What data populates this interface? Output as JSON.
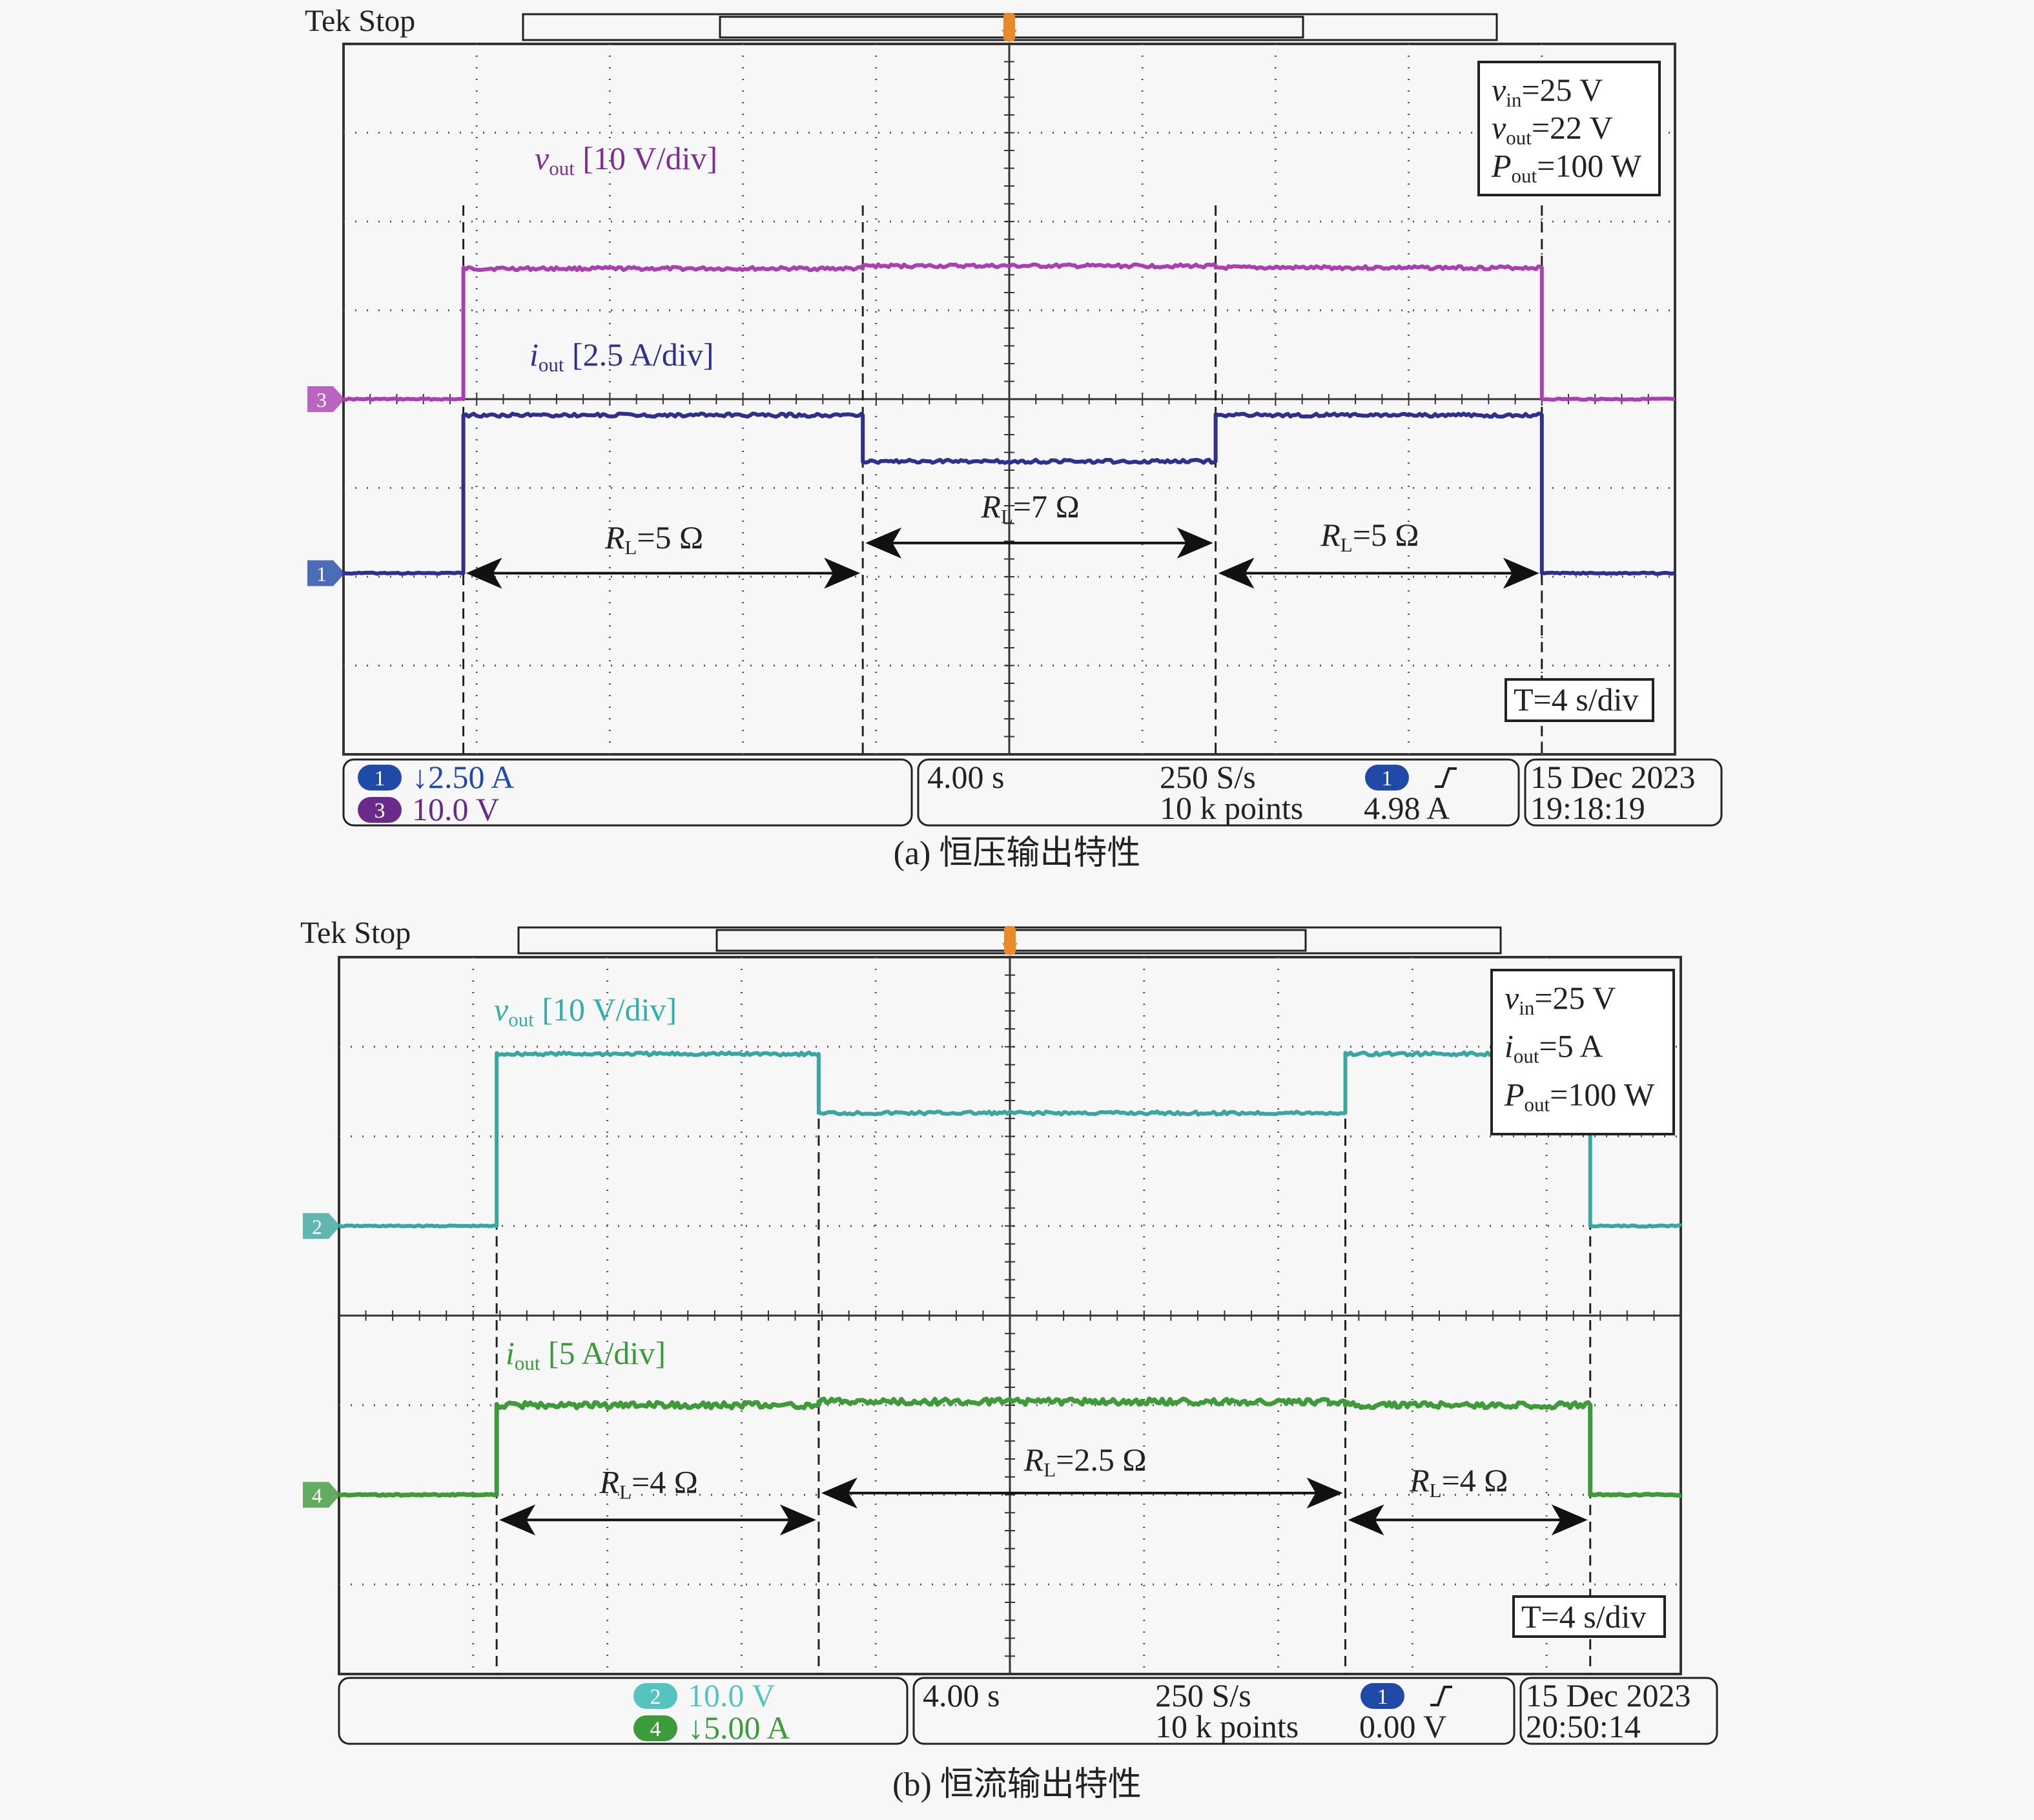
{
  "colors": {
    "bg": "#f7f7f7",
    "frame": "#333333",
    "grid": "#555555",
    "purple": "#a93fb0",
    "navy": "#2f2f8c",
    "teal": "#3aa6a0",
    "green": "#3f9a3a",
    "trigger": "#e98a2a",
    "label_purple": "#7d2f8e",
    "label_teal": "#2fb0a8",
    "label_green": "#3a9a3a",
    "badge_blue": "#1f4aa8",
    "badge_purple": "#6a2a8a",
    "badge_teal": "#55c4c0",
    "badge_green": "#3c9c3c"
  },
  "chart_data": [
    {
      "type": "line",
      "header": "Tek  Stop",
      "caption": "(a) 恒压输出特性",
      "x_unit": "s",
      "time_scale": "T=4 s/div",
      "xlim": [
        -20,
        20
      ],
      "conditions": [
        {
          "sym": "v",
          "sub": "in",
          "rest": "=25 V"
        },
        {
          "sym": "v",
          "sub": "out",
          "rest": "=22 V"
        },
        {
          "sym": "P",
          "sub": "out",
          "rest": "=100 W"
        }
      ],
      "series": [
        {
          "name": "vout [10 V/div]",
          "sym": "v",
          "sub": "out",
          "rest": " [10 V/div]",
          "channel": "3",
          "scale": "10.0 V",
          "color": "purple",
          "ground_div": 0.0,
          "unit_per_div": 10,
          "points": [
            [
              -20,
              0
            ],
            [
              -16.4,
              0
            ],
            [
              -16.4,
              14.7
            ],
            [
              -4.4,
              14.7
            ],
            [
              -4.4,
              15.0
            ],
            [
              6.2,
              15.0
            ],
            [
              6.2,
              14.8
            ],
            [
              16,
              14.8
            ],
            [
              16,
              0
            ],
            [
              20,
              0
            ]
          ]
        },
        {
          "name": "iout [2.5 A/div]",
          "sym": "i",
          "sub": "out",
          "rest": " [2.5 A/div]",
          "channel": "1",
          "scale": "2.50 A",
          "color": "navy",
          "ground_div": -1.96,
          "unit_per_div": 2.5,
          "points": [
            [
              -20,
              0
            ],
            [
              -16.4,
              0
            ],
            [
              -16.4,
              4.45
            ],
            [
              -4.4,
              4.45
            ],
            [
              -4.4,
              3.15
            ],
            [
              6.2,
              3.15
            ],
            [
              6.2,
              4.45
            ],
            [
              16,
              4.45
            ],
            [
              16,
              0
            ],
            [
              20,
              0
            ]
          ]
        }
      ],
      "regions": [
        {
          "sym": "R",
          "sub": "L",
          "rest": "=5 Ω",
          "x0": -16.4,
          "x1": -4.4,
          "arrow_div": -1.96,
          "label_div": -1.65
        },
        {
          "sym": "R",
          "sub": "L",
          "rest": "=7 Ω",
          "x0": -4.4,
          "x1": 6.2,
          "arrow_div": -1.62,
          "label_div": -1.3
        },
        {
          "sym": "R",
          "sub": "L",
          "rest": "=5 Ω",
          "x0": 6.2,
          "x1": 16,
          "arrow_div": -1.96,
          "label_div": -1.62
        }
      ],
      "status": {
        "badges": [
          {
            "num": "1",
            "text": "↓2.50 A",
            "badge": "badge_blue",
            "textcolor": "badge_blue"
          },
          {
            "num": "3",
            "text": "  10.0 V",
            "badge": "badge_purple",
            "textcolor": "badge_purple"
          }
        ],
        "timebase": "4.00 s",
        "rate": "250 S/s",
        "points": "10 k points",
        "trig_num": "1",
        "trig_value": "4.98 A",
        "date": "15 Dec 2023",
        "time": "19:18:19"
      }
    },
    {
      "type": "line",
      "header": "Tek  Stop",
      "caption": "(b) 恒流输出特性",
      "x_unit": "s",
      "time_scale": "T=4 s/div",
      "xlim": [
        -20,
        20
      ],
      "conditions": [
        {
          "sym": "v",
          "sub": "in",
          "rest": "=25 V"
        },
        {
          "sym": "i",
          "sub": "out",
          "rest": "=5 A"
        },
        {
          "sym": "P",
          "sub": "out",
          "rest": "=100 W"
        }
      ],
      "series": [
        {
          "name": "vout [10 V/div]",
          "sym": "v",
          "sub": "out",
          "rest": " [10 V/div]",
          "channel": "2",
          "scale": "10.0 V",
          "color": "teal",
          "ground_div": 1.0,
          "unit_per_div": 10,
          "points": [
            [
              -20,
              0
            ],
            [
              -15.3,
              0
            ],
            [
              -15.3,
              19.2
            ],
            [
              -5.7,
              19.2
            ],
            [
              -5.7,
              12.6
            ],
            [
              10,
              12.6
            ],
            [
              10,
              19.2
            ],
            [
              17.3,
              19.2
            ],
            [
              17.3,
              0
            ],
            [
              20,
              0
            ]
          ]
        },
        {
          "name": "iout [5 A/div]",
          "sym": "i",
          "sub": "out",
          "rest": " [5 A/div]",
          "channel": "4",
          "scale": "↓5.00 A",
          "color": "green",
          "ground_div": -2.0,
          "unit_per_div": 5,
          "points": [
            [
              -20,
              0
            ],
            [
              -15.3,
              0
            ],
            [
              -15.3,
              5.0
            ],
            [
              -5.7,
              5.0
            ],
            [
              -5.7,
              5.2
            ],
            [
              10,
              5.2
            ],
            [
              10,
              5.0
            ],
            [
              17.3,
              5.0
            ],
            [
              17.3,
              0
            ],
            [
              20,
              0
            ]
          ]
        }
      ],
      "regions": [
        {
          "sym": "R",
          "sub": "L",
          "rest": "=4 Ω",
          "x0": -15.3,
          "x1": -5.7,
          "arrow_div": -2.28,
          "label_div": -1.95
        },
        {
          "sym": "R",
          "sub": "L",
          "rest": "=2.5 Ω",
          "x0": -5.7,
          "x1": 10,
          "arrow_div": -1.98,
          "label_div": -1.7
        },
        {
          "sym": "R",
          "sub": "L",
          "rest": "=4 Ω",
          "x0": 10,
          "x1": 17.3,
          "arrow_div": -2.28,
          "label_div": -1.93
        }
      ],
      "status": {
        "badges": [
          {
            "num": "2",
            "text": "  10.0 V",
            "badge": "badge_teal",
            "textcolor": "badge_teal"
          },
          {
            "num": "4",
            "text": "↓5.00 A",
            "badge": "badge_green",
            "textcolor": "badge_green"
          }
        ],
        "timebase": "4.00 s",
        "rate": "250 S/s",
        "points": "10 k points",
        "trig_num": "1",
        "trig_value": "0.00 V",
        "date": "15 Dec 2023",
        "time": "20:50:14"
      }
    }
  ]
}
